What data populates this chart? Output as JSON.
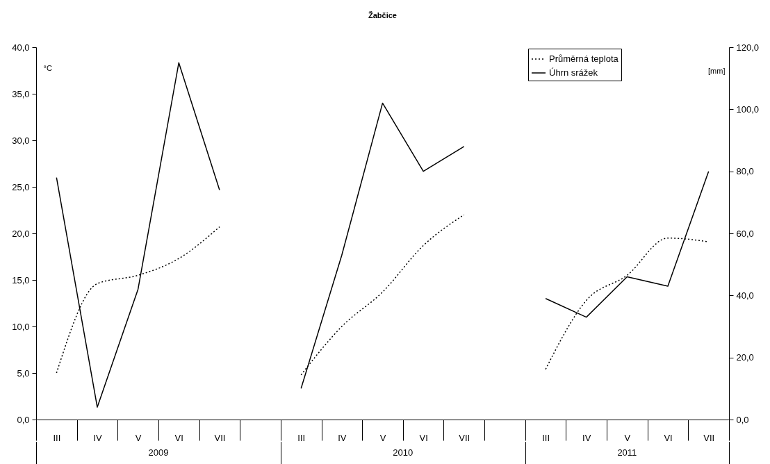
{
  "chart_data": {
    "type": "line",
    "title": "Žabčice",
    "ylabel": "°C",
    "y2label": "[mm]",
    "categories": [
      "III",
      "IV",
      "V",
      "VI",
      "VII",
      null,
      "III",
      "IV",
      "V",
      "VI",
      "VII",
      null,
      "III",
      "IV",
      "V",
      "VI",
      "VII"
    ],
    "series": [
      {
        "name": "Průměrná teplota",
        "color": "#000000",
        "line_style": "dotted",
        "values": [
          5.0,
          14.6,
          15.5,
          17.3,
          20.7,
          null,
          4.8,
          10.0,
          13.7,
          18.7,
          22.0,
          null,
          5.4,
          12.8,
          15.5,
          19.5,
          19.1
        ]
      },
      {
        "name": "Úhrn srážek",
        "color": "#000000",
        "line_style": "solid",
        "axis": "y2",
        "values": [
          78,
          4,
          42,
          115,
          74,
          null,
          10,
          53,
          102,
          80,
          88,
          null,
          39,
          33,
          46,
          43,
          80
        ]
      }
    ],
    "ylim": [
      0,
      40
    ],
    "yticks": [
      {
        "value": 0,
        "label": "0,0"
      },
      {
        "value": 5,
        "label": "5,0"
      },
      {
        "value": 10,
        "label": "10,0"
      },
      {
        "value": 15,
        "label": "15,0"
      },
      {
        "value": 20,
        "label": "20,0"
      },
      {
        "value": 25,
        "label": "25,0"
      },
      {
        "value": 30,
        "label": "30,0"
      },
      {
        "value": 35,
        "label": "35,0"
      },
      {
        "value": 40,
        "label": "40,0"
      }
    ],
    "y2lim": [
      0,
      120
    ],
    "y2ticks": [
      {
        "value": 0,
        "label": "0,0"
      },
      {
        "value": 20,
        "label": "20,0"
      },
      {
        "value": 40,
        "label": "40,0"
      },
      {
        "value": 60,
        "label": "60,0"
      },
      {
        "value": 80,
        "label": "80,0"
      },
      {
        "value": 100,
        "label": "100,0"
      },
      {
        "value": 120,
        "label": "120,0"
      }
    ],
    "annotations": [
      "2009",
      "2010",
      "2011"
    ],
    "legend": "top right",
    "grid": false
  }
}
